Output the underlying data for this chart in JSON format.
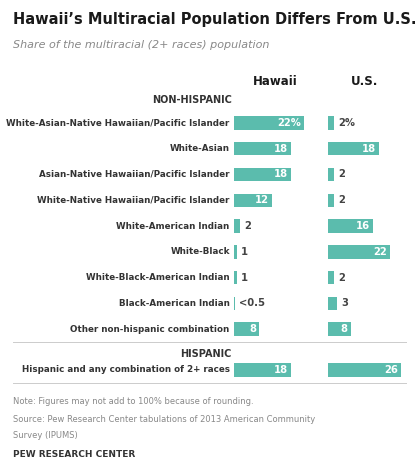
{
  "title": "Hawaii’s Multiracial Population Differs From U.S.",
  "subtitle": "Share of the multiracial (2+ races) population",
  "categories": [
    "White-Asian-Native Hawaiian/Pacific Islander",
    "White-Asian",
    "Asian-Native Hawaiian/Pacific Islander",
    "White-Native Hawaiian/Pacific Islander",
    "White-American Indian",
    "White-Black",
    "White-Black-American Indian",
    "Black-American Indian",
    "Other non-hispanic combination",
    "Hispanic and any combination of 2+ races"
  ],
  "hawaii_values": [
    22,
    18,
    18,
    12,
    2,
    1,
    1,
    0.3,
    8,
    18
  ],
  "us_values": [
    2,
    18,
    2,
    2,
    16,
    22,
    2,
    3,
    8,
    26
  ],
  "hawaii_labels": [
    "22%",
    "18",
    "18",
    "12",
    "2",
    "1",
    "1",
    "<0.5",
    "8",
    "18"
  ],
  "us_labels": [
    "2%",
    "18",
    "2",
    "2",
    "16",
    "22",
    "2",
    "3",
    "8",
    "26"
  ],
  "bar_color": "#5bbcad",
  "non_hispanic_label": "NON-HISPANIC",
  "hispanic_label": "HISPANIC",
  "col1_header": "Hawaii",
  "col2_header": "U.S.",
  "note_line1": "Note: Figures may not add to 100% because of rounding.",
  "note_line2": "Source: Pew Research Center tabulations of 2013 American Community",
  "note_line3": "Survey (IPUMS)",
  "footer": "PEW RESEARCH CENTER",
  "background_color": "#ffffff",
  "max_bar_val": 26
}
